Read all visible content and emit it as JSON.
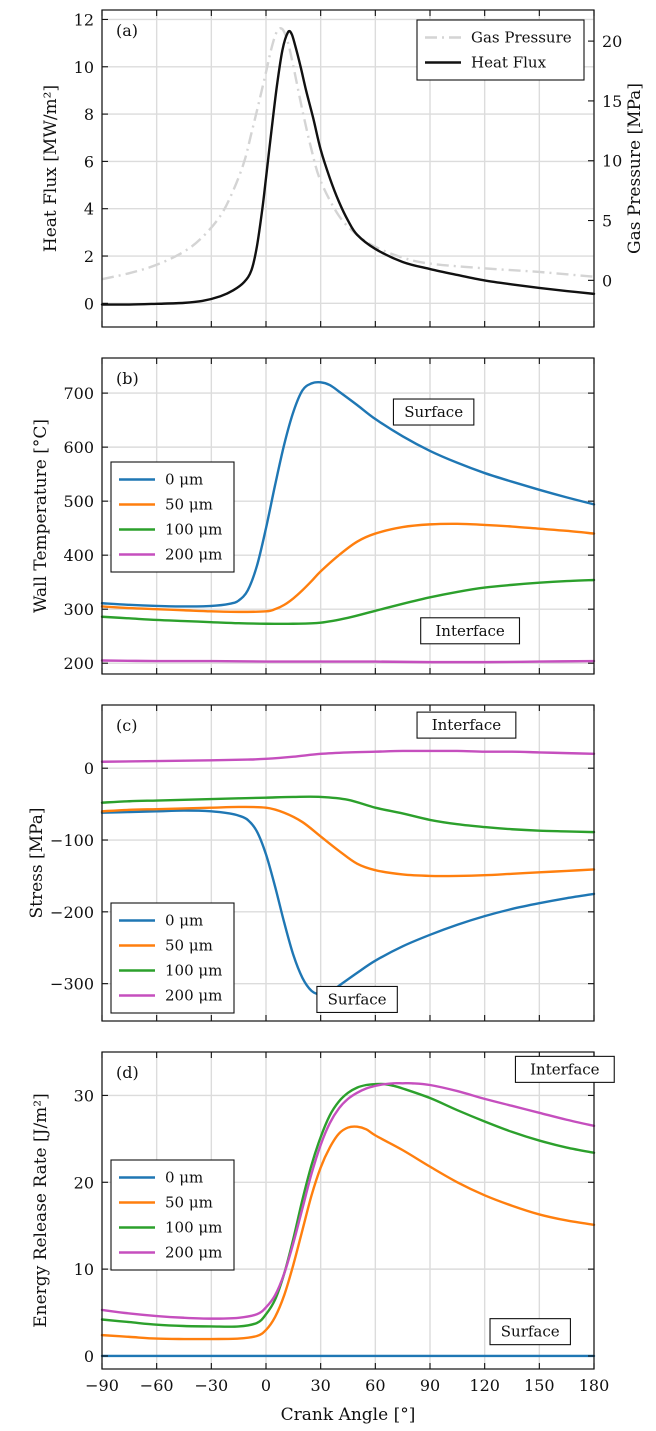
{
  "figure": {
    "xlabel": "Crank Angle [°]",
    "xlim": [
      -90,
      180
    ],
    "xticks": [
      -90,
      -60,
      -30,
      0,
      30,
      60,
      90,
      120,
      150,
      180
    ],
    "tick_labels_x": [
      "−90",
      "−60",
      "−30",
      "0",
      "30",
      "60",
      "90",
      "120",
      "150",
      "180"
    ],
    "grid": true
  },
  "chart_data": [
    {
      "type": "line",
      "panel_label": "(a)",
      "ylabel": "Heat Flux [MW/m²]",
      "ylim": [
        -1,
        12.4
      ],
      "yticks": [
        0,
        2,
        4,
        6,
        8,
        10,
        12
      ],
      "y2label": "Gas Pressure [MPa]",
      "y2lim": [
        -3.9,
        22.6
      ],
      "y2ticks": [
        0,
        5,
        10,
        15,
        20
      ],
      "legend_position": "top-right",
      "series": [
        {
          "name": "Gas Pressure",
          "axis": "right",
          "color": "#d4d4d4",
          "dash": "dashdot",
          "x": [
            -90,
            -75,
            -60,
            -45,
            -35,
            -25,
            -18,
            -12,
            -8,
            -4,
            0,
            3,
            6,
            9,
            12,
            15,
            20,
            25,
            30,
            40,
            50,
            60,
            75,
            90,
            120,
            150,
            180
          ],
          "y": [
            0.1,
            0.6,
            1.3,
            2.4,
            3.6,
            5.4,
            7.5,
            9.9,
            12.3,
            14.8,
            17.4,
            19.4,
            20.8,
            21.0,
            19.9,
            17.9,
            14.2,
            10.9,
            8.3,
            5.4,
            3.8,
            2.8,
            1.9,
            1.4,
            1.0,
            0.7,
            0.3
          ]
        },
        {
          "name": "Heat Flux",
          "axis": "left",
          "color": "#111111",
          "dash": "solid",
          "x": [
            -90,
            -75,
            -60,
            -45,
            -35,
            -25,
            -18,
            -12,
            -8,
            -5,
            -2,
            0,
            3,
            6,
            9,
            12,
            14,
            16,
            19,
            22,
            26,
            30,
            35,
            40,
            45,
            50,
            60,
            75,
            90,
            105,
            120,
            135,
            150,
            165,
            180
          ],
          "y": [
            -0.05,
            -0.05,
            -0.02,
            0.02,
            0.1,
            0.3,
            0.55,
            0.9,
            1.4,
            2.4,
            4.0,
            5.3,
            7.3,
            9.2,
            10.7,
            11.45,
            11.4,
            10.9,
            10.0,
            9.0,
            7.8,
            6.5,
            5.3,
            4.3,
            3.5,
            2.9,
            2.3,
            1.75,
            1.45,
            1.2,
            0.97,
            0.8,
            0.65,
            0.52,
            0.4
          ]
        }
      ]
    },
    {
      "type": "line",
      "panel_label": "(b)",
      "ylabel": "Wall Temperature [°C]",
      "ylim": [
        180,
        765
      ],
      "yticks": [
        200,
        300,
        400,
        500,
        600,
        700
      ],
      "legend_position": "left",
      "annotations": [
        {
          "text": "Surface",
          "x": 92,
          "y": 665
        },
        {
          "text": "Interface",
          "x": 112,
          "y": 260
        }
      ],
      "series": [
        {
          "name": "0 μm",
          "color": "#1f77b4",
          "x": [
            -90,
            -75,
            -60,
            -45,
            -30,
            -20,
            -15,
            -10,
            -5,
            0,
            5,
            10,
            15,
            20,
            25,
            30,
            35,
            40,
            50,
            60,
            75,
            90,
            105,
            120,
            135,
            150,
            165,
            180
          ],
          "y": [
            311,
            308,
            306,
            305,
            306,
            310,
            316,
            335,
            380,
            450,
            530,
            605,
            665,
            705,
            718,
            720,
            715,
            703,
            678,
            652,
            620,
            593,
            571,
            552,
            536,
            521,
            507,
            494
          ]
        },
        {
          "name": "50 μm",
          "color": "#ff7f0e",
          "x": [
            -90,
            -75,
            -60,
            -45,
            -30,
            -15,
            0,
            5,
            10,
            15,
            20,
            25,
            30,
            40,
            50,
            60,
            75,
            90,
            105,
            120,
            135,
            150,
            165,
            180
          ],
          "y": [
            305,
            302,
            300,
            298,
            296,
            295,
            296,
            300,
            308,
            320,
            335,
            352,
            370,
            400,
            425,
            440,
            452,
            457,
            458,
            456,
            453,
            449,
            445,
            440
          ]
        },
        {
          "name": "100 μm",
          "color": "#2ca02c",
          "x": [
            -90,
            -75,
            -60,
            -45,
            -30,
            -15,
            0,
            15,
            30,
            45,
            60,
            75,
            90,
            105,
            120,
            135,
            150,
            165,
            180
          ],
          "y": [
            286,
            283,
            280,
            278,
            276,
            274,
            273,
            273,
            275,
            284,
            297,
            310,
            322,
            332,
            340,
            345,
            349,
            352,
            354
          ]
        },
        {
          "name": "200 μm",
          "color": "#c54fbe",
          "x": [
            -90,
            -60,
            -30,
            0,
            30,
            60,
            90,
            120,
            150,
            180
          ],
          "y": [
            205,
            204,
            204,
            203,
            203,
            203,
            202,
            202,
            203,
            204
          ]
        }
      ]
    },
    {
      "type": "line",
      "panel_label": "(c)",
      "ylabel": "Stress [MPa]",
      "ylim": [
        -352,
        88
      ],
      "yticks": [
        0,
        -100,
        -200,
        -300
      ],
      "tick_labels_y": [
        "0",
        "−100",
        "−200",
        "−300"
      ],
      "legend_position": "bottom-left",
      "annotations": [
        {
          "text": "Interface",
          "x": 110,
          "y": 60
        },
        {
          "text": "Surface",
          "x": 50,
          "y": -322
        }
      ],
      "series": [
        {
          "name": "0 μm",
          "color": "#1f77b4",
          "x": [
            -90,
            -75,
            -60,
            -45,
            -30,
            -20,
            -15,
            -10,
            -5,
            0,
            5,
            10,
            15,
            20,
            25,
            30,
            35,
            40,
            50,
            60,
            75,
            90,
            105,
            120,
            135,
            150,
            165,
            180
          ],
          "y": [
            -62,
            -61,
            -60,
            -59,
            -60,
            -63,
            -66,
            -72,
            -88,
            -120,
            -165,
            -215,
            -260,
            -292,
            -310,
            -315,
            -312,
            -303,
            -285,
            -268,
            -248,
            -232,
            -218,
            -206,
            -196,
            -188,
            -181,
            -175
          ]
        },
        {
          "name": "50 μm",
          "color": "#ff7f0e",
          "x": [
            -90,
            -75,
            -60,
            -45,
            -30,
            -15,
            0,
            10,
            20,
            30,
            40,
            50,
            60,
            75,
            90,
            105,
            120,
            135,
            150,
            165,
            180
          ],
          "y": [
            -60,
            -58,
            -57,
            -56,
            -55,
            -54,
            -55,
            -62,
            -75,
            -95,
            -115,
            -133,
            -142,
            -148,
            -150,
            -150,
            -149,
            -147,
            -145,
            -143,
            -141
          ]
        },
        {
          "name": "100 μm",
          "color": "#2ca02c",
          "x": [
            -90,
            -75,
            -60,
            -45,
            -30,
            -15,
            0,
            15,
            30,
            45,
            60,
            75,
            90,
            105,
            120,
            135,
            150,
            165,
            180
          ],
          "y": [
            -48,
            -46,
            -45,
            -44,
            -43,
            -42,
            -41,
            -40,
            -40,
            -44,
            -55,
            -63,
            -72,
            -78,
            -82,
            -85,
            -87,
            -88,
            -89
          ]
        },
        {
          "name": "200 μm",
          "color": "#c54fbe",
          "x": [
            -90,
            -60,
            -30,
            -10,
            0,
            15,
            30,
            45,
            60,
            75,
            90,
            105,
            120,
            135,
            150,
            165,
            180
          ],
          "y": [
            9,
            10,
            11,
            12,
            13,
            16,
            20,
            22,
            23,
            24,
            24,
            24,
            23,
            23,
            22,
            21,
            20
          ]
        }
      ]
    },
    {
      "type": "line",
      "panel_label": "(d)",
      "ylabel": "Energy Release Rate [J/m²]",
      "ylim": [
        -1.5,
        35
      ],
      "yticks": [
        0,
        10,
        20,
        30
      ],
      "legend_position": "center-left",
      "annotations": [
        {
          "text": "Interface",
          "x": 164,
          "y": 33
        },
        {
          "text": "Surface",
          "x": 145,
          "y": 2.8
        }
      ],
      "series": [
        {
          "name": "0 μm",
          "color": "#1f77b4",
          "x": [
            -90,
            180
          ],
          "y": [
            0,
            0
          ]
        },
        {
          "name": "50 μm",
          "color": "#ff7f0e",
          "x": [
            -90,
            -75,
            -60,
            -45,
            -30,
            -15,
            -5,
            0,
            5,
            10,
            15,
            20,
            25,
            30,
            35,
            40,
            45,
            50,
            55,
            60,
            75,
            90,
            105,
            120,
            135,
            150,
            165,
            180
          ],
          "y": [
            2.4,
            2.2,
            2.0,
            1.95,
            1.95,
            2.0,
            2.3,
            3.0,
            4.5,
            7.0,
            10.5,
            14.5,
            18.5,
            21.7,
            24.0,
            25.6,
            26.3,
            26.4,
            26.1,
            25.4,
            23.7,
            21.8,
            20.0,
            18.5,
            17.3,
            16.3,
            15.6,
            15.1
          ]
        },
        {
          "name": "100 μm",
          "color": "#2ca02c",
          "x": [
            -90,
            -75,
            -60,
            -45,
            -30,
            -15,
            -5,
            0,
            5,
            10,
            15,
            20,
            25,
            30,
            35,
            40,
            45,
            50,
            55,
            60,
            65,
            70,
            75,
            90,
            105,
            120,
            135,
            150,
            165,
            180
          ],
          "y": [
            4.2,
            3.9,
            3.6,
            3.45,
            3.4,
            3.4,
            3.8,
            4.8,
            6.5,
            9.5,
            13.5,
            18.0,
            22.0,
            25.2,
            27.7,
            29.3,
            30.3,
            30.9,
            31.2,
            31.3,
            31.3,
            31.1,
            30.8,
            29.7,
            28.3,
            27.0,
            25.8,
            24.8,
            24.0,
            23.4
          ]
        },
        {
          "name": "200 μm",
          "color": "#c54fbe",
          "x": [
            -90,
            -75,
            -60,
            -45,
            -30,
            -15,
            -5,
            0,
            5,
            10,
            15,
            20,
            25,
            30,
            35,
            40,
            45,
            50,
            55,
            60,
            65,
            70,
            75,
            80,
            90,
            105,
            120,
            135,
            150,
            165,
            180
          ],
          "y": [
            5.3,
            4.9,
            4.6,
            4.4,
            4.3,
            4.4,
            4.8,
            5.6,
            7.0,
            9.5,
            13.0,
            17.0,
            21.0,
            24.3,
            26.8,
            28.5,
            29.6,
            30.3,
            30.8,
            31.1,
            31.3,
            31.4,
            31.4,
            31.4,
            31.2,
            30.5,
            29.6,
            28.8,
            28.0,
            27.2,
            26.5
          ]
        }
      ]
    }
  ]
}
